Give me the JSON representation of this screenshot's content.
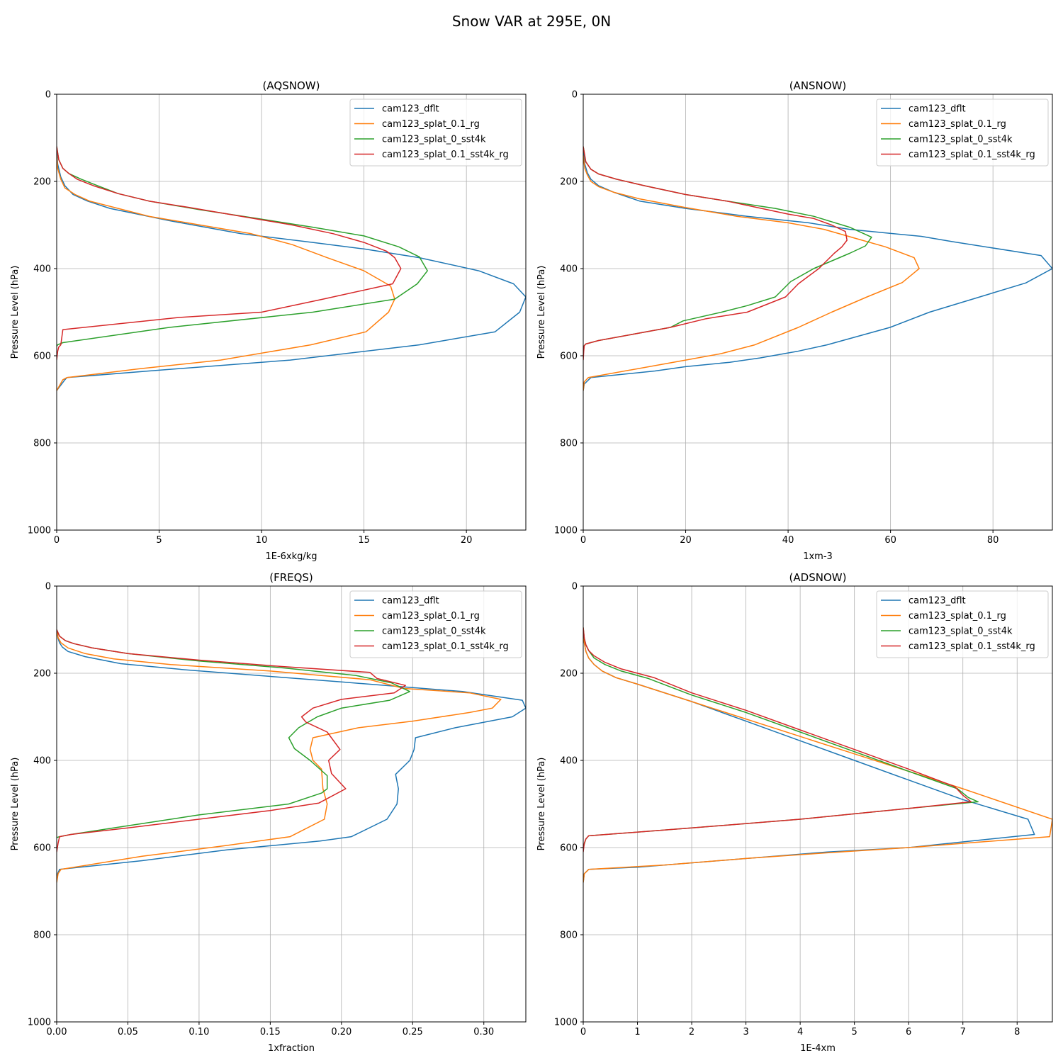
{
  "suptitle": "Snow VAR at 295E, 0N",
  "colors": {
    "cam123_dflt": "#1f77b4",
    "cam123_splat_0.1_rg": "#ff7f0e",
    "cam123_splat_0_sst4k": "#2ca02c",
    "cam123_splat_0.1_sst4k_rg": "#d62728"
  },
  "chart_data": [
    {
      "type": "line",
      "title": "(AQSNOW)",
      "xlabel": "1E-6xkg/kg",
      "ylabel": "Pressure Level (hPa)",
      "xlim": [
        0,
        22.9
      ],
      "ylim": [
        1000,
        0
      ],
      "xticks": [
        0,
        5,
        10,
        15,
        20
      ],
      "xtick_labels": [
        "0",
        "5",
        "10",
        "15",
        "20"
      ],
      "yticks": [
        0,
        200,
        400,
        600,
        800,
        1000
      ],
      "ytick_labels": [
        "0",
        "200",
        "400",
        "600",
        "800",
        "1000"
      ],
      "grid": true,
      "legend_loc": "top-right",
      "series": [
        {
          "name": "cam123_dflt",
          "x": [
            0,
            0.05,
            0.2,
            0.4,
            0.8,
            1.5,
            2.6,
            5.5,
            9.0,
            12.5,
            15.0,
            17.7,
            20.6,
            22.3,
            22.9,
            22.6,
            21.4,
            17.7,
            11.4,
            4.5,
            0.5,
            0.4,
            0
          ],
          "y": [
            130,
            160,
            190,
            210,
            230,
            245,
            262,
            290,
            320,
            340,
            355,
            375,
            405,
            435,
            465,
            500,
            545,
            575,
            610,
            635,
            650,
            655,
            680
          ]
        },
        {
          "name": "cam123_splat_0.1_rg",
          "x": [
            0,
            0.05,
            0.2,
            0.4,
            0.9,
            1.6,
            3.0,
            4.5,
            7.0,
            9.5,
            11.5,
            13.2,
            15.0,
            16.3,
            16.5,
            16.2,
            15.1,
            12.4,
            8.0,
            4.0,
            0.5,
            0.3,
            0
          ],
          "y": [
            140,
            170,
            195,
            215,
            230,
            245,
            262,
            280,
            300,
            320,
            345,
            375,
            405,
            440,
            470,
            500,
            545,
            575,
            610,
            630,
            650,
            655,
            680
          ]
        },
        {
          "name": "cam123_splat_0_sst4k",
          "x": [
            0,
            0.1,
            0.3,
            0.6,
            1.2,
            2.0,
            3.0,
            4.5,
            7.0,
            9.5,
            12.5,
            15.0,
            16.7,
            17.7,
            18.1,
            17.6,
            16.5,
            12.5,
            5.5,
            0.3,
            0.05,
            0
          ],
          "y": [
            120,
            150,
            170,
            182,
            195,
            210,
            228,
            245,
            265,
            283,
            305,
            325,
            350,
            373,
            405,
            435,
            470,
            500,
            535,
            570,
            575,
            578
          ]
        },
        {
          "name": "cam123_splat_0.1_sst4k_rg",
          "x": [
            0,
            0.1,
            0.3,
            0.6,
            1.0,
            1.8,
            3.0,
            4.5,
            6.5,
            9.0,
            11.5,
            13.5,
            15.0,
            16.1,
            16.5,
            16.8,
            16.4,
            13.0,
            10.0,
            6.0,
            0.3,
            0.2,
            0.1,
            0.05,
            0
          ],
          "y": [
            120,
            150,
            170,
            182,
            195,
            210,
            228,
            245,
            260,
            280,
            300,
            320,
            340,
            360,
            375,
            400,
            435,
            470,
            500,
            512,
            540,
            575,
            580,
            590,
            610
          ]
        }
      ]
    },
    {
      "type": "line",
      "title": "(ANSNOW)",
      "xlabel": "1xm-3",
      "ylabel": "Pressure Level (hPa)",
      "xlim": [
        0,
        91.6
      ],
      "ylim": [
        1000,
        0
      ],
      "xticks": [
        0,
        20,
        40,
        60,
        80
      ],
      "xtick_labels": [
        "0",
        "20",
        "40",
        "60",
        "80"
      ],
      "yticks": [
        0,
        200,
        400,
        600,
        800,
        1000
      ],
      "ytick_labels": [
        "0",
        "200",
        "400",
        "600",
        "800",
        "1000"
      ],
      "grid": true,
      "legend_loc": "top-right",
      "series": [
        {
          "name": "cam123_dflt",
          "x": [
            0,
            0.3,
            0.8,
            1.5,
            3.0,
            6.0,
            11.0,
            20.0,
            32.0,
            44.0,
            52.0,
            59.0,
            66.0,
            72.0,
            89.4,
            91.6,
            86.4,
            67.6,
            59.9,
            47.6,
            41.8,
            34.5,
            28.6,
            20.0,
            14.0,
            1.5,
            0.2,
            0
          ],
          "y": [
            130,
            160,
            180,
            195,
            210,
            225,
            245,
            262,
            280,
            295,
            310,
            318,
            326,
            338,
            370,
            400,
            433,
            500,
            535,
            575,
            590,
            605,
            615,
            625,
            635,
            650,
            665,
            680
          ]
        },
        {
          "name": "cam123_splat_0.1_rg",
          "x": [
            0,
            0.3,
            0.8,
            1.5,
            3.0,
            6.0,
            11.0,
            20.0,
            30.0,
            40.0,
            47.0,
            53.0,
            59.0,
            64.6,
            65.6,
            62.3,
            55.4,
            48.5,
            42.0,
            33.5,
            27.0,
            20.0,
            1.0,
            0.2,
            0
          ],
          "y": [
            140,
            170,
            185,
            200,
            212,
            225,
            240,
            260,
            280,
            295,
            310,
            330,
            350,
            375,
            400,
            432,
            465,
            500,
            535,
            575,
            595,
            610,
            650,
            660,
            680
          ]
        },
        {
          "name": "cam123_splat_0_sst4k",
          "x": [
            0,
            0.5,
            1.5,
            3.0,
            6.5,
            12.0,
            20.0,
            28.0,
            37.5,
            45.0,
            52.0,
            56.3,
            55.1,
            52.0,
            45.0,
            40.5,
            37.5,
            32.0,
            27.0,
            19.5,
            17.0,
            10.0,
            3.0,
            0.5,
            0.2,
            0
          ],
          "y": [
            120,
            155,
            172,
            183,
            195,
            210,
            230,
            245,
            262,
            280,
            305,
            328,
            348,
            365,
            400,
            430,
            465,
            485,
            500,
            520,
            535,
            550,
            565,
            573,
            577,
            580
          ]
        },
        {
          "name": "cam123_splat_0.1_sst4k_rg",
          "x": [
            0,
            0.5,
            1.5,
            3.0,
            6.5,
            12.0,
            20.0,
            28.0,
            34.0,
            40.0,
            45.0,
            48.5,
            51.2,
            51.5,
            50.5,
            49.0,
            46.0,
            42.0,
            39.5,
            32.0,
            24.0,
            17.0,
            10.0,
            3.0,
            0.5,
            0.2,
            0.1,
            0
          ],
          "y": [
            120,
            155,
            172,
            183,
            195,
            210,
            230,
            245,
            260,
            275,
            285,
            300,
            315,
            335,
            350,
            365,
            400,
            435,
            465,
            500,
            515,
            535,
            550,
            565,
            573,
            577,
            590,
            610
          ]
        }
      ]
    },
    {
      "type": "line",
      "title": "(FREQS)",
      "xlabel": "1xfraction",
      "ylabel": "Pressure Level (hPa)",
      "xlim": [
        0,
        0.3295
      ],
      "ylim": [
        1000,
        0
      ],
      "xticks": [
        0,
        0.05,
        0.1,
        0.15,
        0.2,
        0.25,
        0.3
      ],
      "xtick_labels": [
        "0.00",
        "0.05",
        "0.10",
        "0.15",
        "0.20",
        "0.25",
        "0.30"
      ],
      "yticks": [
        0,
        200,
        400,
        600,
        800,
        1000
      ],
      "ytick_labels": [
        "0",
        "200",
        "400",
        "600",
        "800",
        "1000"
      ],
      "grid": true,
      "legend_loc": "top-right",
      "series": [
        {
          "name": "cam123_dflt",
          "x": [
            0,
            0.001,
            0.002,
            0.004,
            0.008,
            0.02,
            0.045,
            0.09,
            0.2,
            0.285,
            0.327,
            0.3295,
            0.32,
            0.28,
            0.252,
            0.251,
            0.248,
            0.238,
            0.24,
            0.239,
            0.232,
            0.207,
            0.185,
            0.12,
            0.06,
            0.002,
            0,
            0
          ],
          "y": [
            100,
            120,
            130,
            140,
            150,
            162,
            178,
            192,
            220,
            242,
            262,
            280,
            300,
            325,
            348,
            375,
            400,
            432,
            465,
            500,
            535,
            575,
            585,
            605,
            630,
            650,
            665,
            680
          ]
        },
        {
          "name": "cam123_splat_0.1_rg",
          "x": [
            0,
            0.001,
            0.003,
            0.008,
            0.02,
            0.04,
            0.08,
            0.15,
            0.22,
            0.244,
            0.29,
            0.312,
            0.306,
            0.29,
            0.25,
            0.212,
            0.18,
            0.178,
            0.18,
            0.186,
            0.187,
            0.19,
            0.188,
            0.164,
            0.12,
            0.06,
            0.003,
            0.001,
            0
          ],
          "y": [
            100,
            118,
            130,
            142,
            155,
            167,
            180,
            195,
            215,
            235,
            245,
            260,
            280,
            290,
            310,
            325,
            348,
            375,
            400,
            420,
            465,
            500,
            535,
            575,
            595,
            620,
            650,
            660,
            680
          ]
        },
        {
          "name": "cam123_splat_0_sst4k",
          "x": [
            0,
            0.002,
            0.006,
            0.012,
            0.025,
            0.05,
            0.1,
            0.16,
            0.21,
            0.235,
            0.248,
            0.234,
            0.2,
            0.183,
            0.17,
            0.163,
            0.167,
            0.178,
            0.19,
            0.19,
            0.186,
            0.163,
            0.1,
            0.07,
            0.04,
            0.01,
            0.002,
            0
          ],
          "y": [
            100,
            115,
            125,
            132,
            142,
            155,
            172,
            188,
            205,
            222,
            242,
            262,
            280,
            300,
            325,
            348,
            373,
            400,
            435,
            465,
            475,
            500,
            525,
            540,
            555,
            570,
            575,
            577
          ]
        },
        {
          "name": "cam123_splat_0.1_sst4k_rg",
          "x": [
            0,
            0.002,
            0.006,
            0.012,
            0.025,
            0.05,
            0.1,
            0.16,
            0.22,
            0.225,
            0.245,
            0.237,
            0.2,
            0.18,
            0.172,
            0.175,
            0.19,
            0.199,
            0.191,
            0.193,
            0.203,
            0.184,
            0.15,
            0.1,
            0.05,
            0.01,
            0.002,
            0.001,
            0
          ],
          "y": [
            100,
            115,
            125,
            132,
            142,
            155,
            170,
            185,
            198,
            212,
            228,
            245,
            260,
            280,
            300,
            312,
            335,
            375,
            400,
            430,
            465,
            498,
            515,
            535,
            555,
            570,
            575,
            590,
            610
          ]
        }
      ]
    },
    {
      "type": "line",
      "title": "(ADSNOW)",
      "xlabel": "1E-4xm",
      "ylabel": "Pressure Level (hPa)",
      "xlim": [
        0,
        8.65
      ],
      "ylim": [
        1000,
        0
      ],
      "xticks": [
        0,
        1,
        2,
        3,
        4,
        5,
        6,
        7,
        8
      ],
      "xtick_labels": [
        "0",
        "1",
        "2",
        "3",
        "4",
        "5",
        "6",
        "7",
        "8"
      ],
      "yticks": [
        0,
        200,
        400,
        600,
        800,
        1000
      ],
      "ytick_labels": [
        "0",
        "200",
        "400",
        "600",
        "800",
        "1000"
      ],
      "grid": true,
      "legend_loc": "top-right",
      "series": [
        {
          "name": "cam123_dflt",
          "x": [
            0,
            0.02,
            0.05,
            0.1,
            0.2,
            0.35,
            0.6,
            1.0,
            2.0,
            3.0,
            4.0,
            5.0,
            6.0,
            7.0,
            8.2,
            8.32,
            6.0,
            4.5,
            2.5,
            1.0,
            0.1,
            0.02,
            0
          ],
          "y": [
            100,
            130,
            150,
            165,
            180,
            195,
            210,
            225,
            265,
            310,
            355,
            400,
            445,
            490,
            535,
            570,
            600,
            610,
            630,
            645,
            650,
            660,
            680
          ]
        },
        {
          "name": "cam123_splat_0.1_rg",
          "x": [
            0,
            0.02,
            0.05,
            0.1,
            0.2,
            0.35,
            0.6,
            1.0,
            2.0,
            3.0,
            4.0,
            5.0,
            6.0,
            7.0,
            8.65,
            8.6,
            6.0,
            4.5,
            3.0,
            1.5,
            0.1,
            0.02,
            0
          ],
          "y": [
            105,
            130,
            150,
            165,
            180,
            195,
            210,
            225,
            265,
            305,
            345,
            385,
            425,
            465,
            535,
            575,
            600,
            612,
            625,
            640,
            650,
            660,
            680
          ]
        },
        {
          "name": "cam123_splat_0_sst4k",
          "x": [
            0,
            0.02,
            0.05,
            0.1,
            0.2,
            0.4,
            0.7,
            1.2,
            2.0,
            3.0,
            4.0,
            5.0,
            6.0,
            6.9,
            7.1,
            7.28,
            6.0,
            4.0,
            2.0,
            0.1,
            0.05,
            0
          ],
          "y": [
            95,
            120,
            135,
            148,
            165,
            180,
            195,
            212,
            250,
            290,
            335,
            380,
            425,
            465,
            485,
            495,
            510,
            535,
            555,
            573,
            580,
            600
          ]
        },
        {
          "name": "cam123_splat_0.1_sst4k_rg",
          "x": [
            0,
            0.02,
            0.05,
            0.1,
            0.2,
            0.4,
            0.7,
            1.3,
            2.0,
            3.0,
            4.0,
            5.0,
            6.0,
            6.85,
            7.0,
            7.15,
            6.0,
            4.0,
            2.0,
            0.1,
            0.05,
            0.02,
            0
          ],
          "y": [
            95,
            120,
            135,
            148,
            160,
            175,
            190,
            210,
            245,
            285,
            330,
            375,
            420,
            460,
            480,
            495,
            510,
            535,
            555,
            573,
            580,
            590,
            610
          ]
        }
      ]
    }
  ]
}
